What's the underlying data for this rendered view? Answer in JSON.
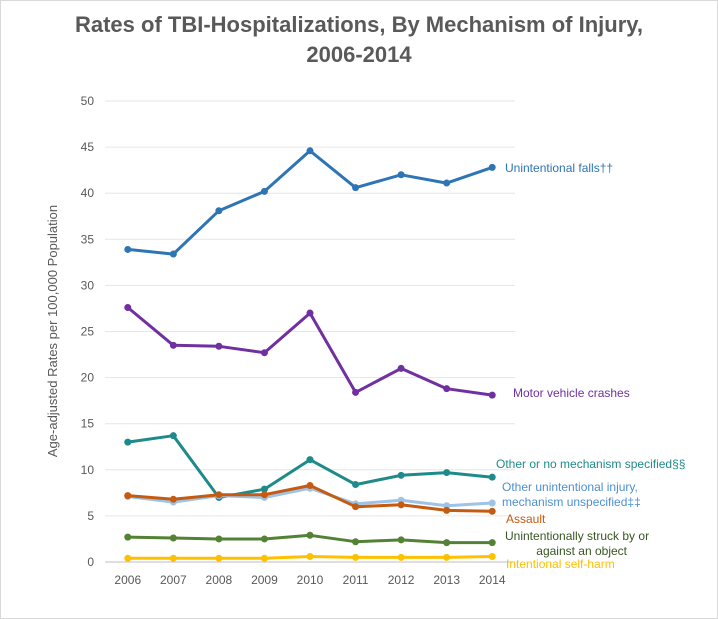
{
  "chart_data": {
    "type": "line",
    "title_lines": [
      "Rates of TBI-Hospitalizations, By Mechanism of Injury,",
      "2006-2014"
    ],
    "xlabel": "",
    "ylabel": "Age-adjusted Rates per 100,000 Population",
    "x": [
      "2006",
      "2007",
      "2008",
      "2009",
      "2010",
      "2011",
      "2012",
      "2013",
      "2014"
    ],
    "yticks": [
      "0",
      "5",
      "10",
      "15",
      "20",
      "25",
      "30",
      "35",
      "40",
      "45",
      "50"
    ],
    "ylim": [
      0,
      50
    ],
    "grid": true,
    "legend": "labels at line ends",
    "series": [
      {
        "name": "Unintentional falls††",
        "label_lines": [
          "Unintentional falls††"
        ],
        "color": "#2e75b6",
        "values": [
          33.9,
          33.4,
          38.1,
          40.2,
          44.6,
          40.6,
          42.0,
          41.1,
          42.8
        ]
      },
      {
        "name": "Motor vehicle crashes",
        "label_lines": [
          "Motor vehicle crashes"
        ],
        "color": "#7030a0",
        "values": [
          27.6,
          23.5,
          23.4,
          22.7,
          27.0,
          18.4,
          21.0,
          18.8,
          18.1
        ]
      },
      {
        "name": "Other or no mechanism specified§§",
        "label_lines": [
          "Other or no mechanism specified§§"
        ],
        "color": "#1f8a8a",
        "values": [
          13.0,
          13.7,
          7.0,
          7.9,
          11.1,
          8.4,
          9.4,
          9.7,
          9.2
        ]
      },
      {
        "name": "Other unintentional injury, mechanism unspecified‡‡",
        "label_lines": [
          "Other unintentional injury,",
          "mechanism unspecified‡‡"
        ],
        "color": "#9dc3e6",
        "values": [
          7.1,
          6.5,
          7.2,
          7.0,
          8.0,
          6.3,
          6.7,
          6.1,
          6.4
        ]
      },
      {
        "name": "Assault",
        "label_lines": [
          "Assault"
        ],
        "color": "#c55a11",
        "values": [
          7.2,
          6.8,
          7.3,
          7.3,
          8.3,
          6.0,
          6.2,
          5.6,
          5.5
        ]
      },
      {
        "name": "Unintentionally struck by or against an object",
        "label_lines": [
          "Unintentionally struck by or",
          "against an object"
        ],
        "color": "#548235",
        "values": [
          2.7,
          2.6,
          2.5,
          2.5,
          2.9,
          2.2,
          2.4,
          2.1,
          2.1
        ]
      },
      {
        "name": "Intentional self-harm",
        "label_lines": [
          "Intentional self-harm"
        ],
        "color": "#ffc000",
        "values": [
          0.4,
          0.4,
          0.4,
          0.4,
          0.6,
          0.5,
          0.5,
          0.5,
          0.6
        ]
      }
    ]
  }
}
